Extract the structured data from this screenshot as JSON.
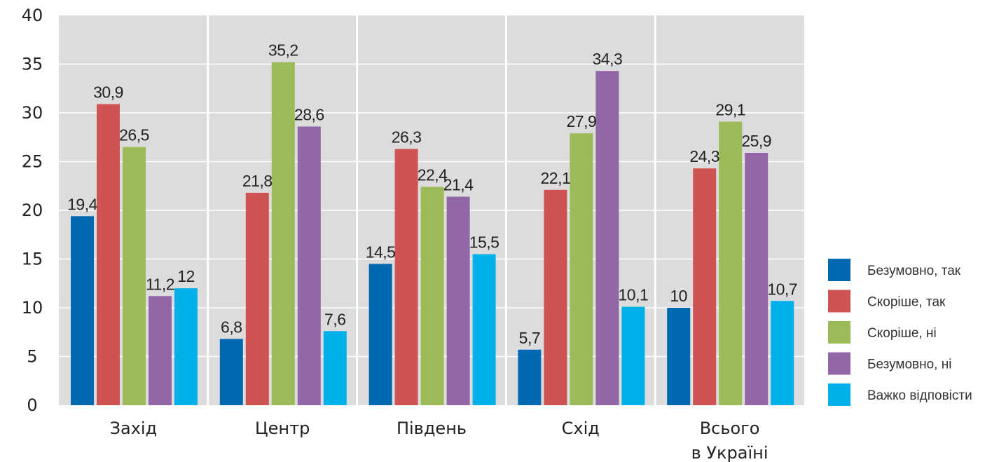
{
  "chart_data": {
    "type": "bar",
    "title": "",
    "xlabel": "",
    "ylabel": "",
    "ylim": [
      0,
      40
    ],
    "yticks": [
      0,
      5,
      10,
      15,
      20,
      25,
      30,
      35,
      40
    ],
    "grid": true,
    "legend_position": "right",
    "categories": [
      [
        "Захід"
      ],
      [
        "Центр"
      ],
      [
        "Південь"
      ],
      [
        "Схід"
      ],
      [
        "Всього",
        "в Україні"
      ]
    ],
    "series": [
      {
        "name": "Безумовно, так",
        "color": "#0067b1",
        "values": [
          19.4,
          6.8,
          14.5,
          5.7,
          10
        ],
        "labels": [
          "19,4",
          "6,8",
          "14,5",
          "5,7",
          "10"
        ]
      },
      {
        "name": "Скоріше, так",
        "color": "#d05353",
        "values": [
          30.9,
          21.8,
          26.3,
          22.1,
          24.3
        ],
        "labels": [
          "30,9",
          "21,8",
          "26,3",
          "22,1",
          "24,3"
        ]
      },
      {
        "name": "Скоріше, ні",
        "color": "#9bbb59",
        "values": [
          26.5,
          35.2,
          22.4,
          27.9,
          29.1
        ],
        "labels": [
          "26,5",
          "35,2",
          "22,4",
          "27,9",
          "29,1"
        ]
      },
      {
        "name": "Безумовно, ні",
        "color": "#9366a8",
        "values": [
          11.2,
          28.6,
          21.4,
          34.3,
          25.9
        ],
        "labels": [
          "11,2",
          "28,6",
          "21,4",
          "34,3",
          "25,9"
        ]
      },
      {
        "name": "Важко відповісти",
        "color": "#00b0e8",
        "values": [
          12,
          7.6,
          15.5,
          10.1,
          10.7
        ],
        "labels": [
          "12",
          "7,6",
          "15,5",
          "10,1",
          "10,7"
        ]
      }
    ]
  },
  "colors": {
    "plot_background": "#dcdcdc",
    "gridline": "#ffffff"
  }
}
